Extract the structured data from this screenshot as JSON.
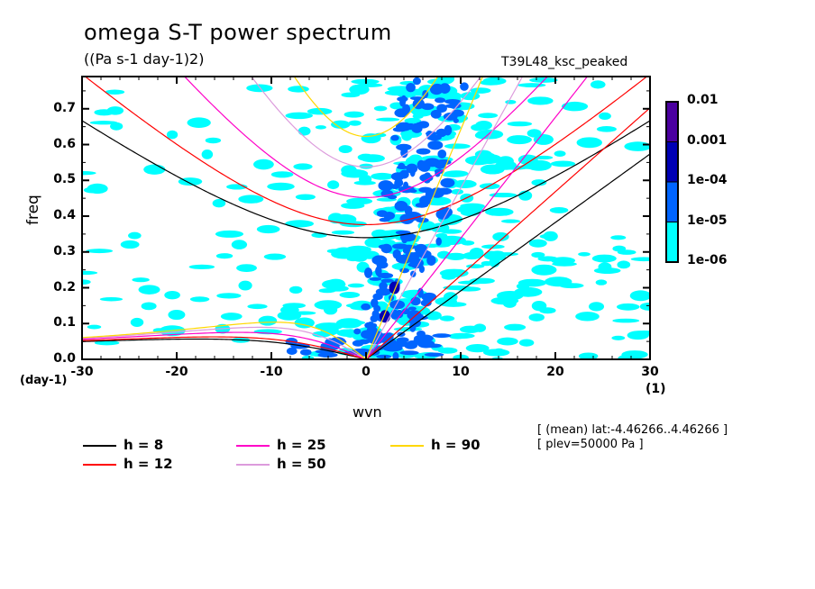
{
  "title": "omega S-T power spectrum",
  "units": "((Pa s-1 day-1)2)",
  "experiment": "T39L48_ksc_peaked",
  "meta_lines": [
    "[ (mean) lat:-4.46266..4.46266 ]",
    "[ plev=50000 Pa ]"
  ],
  "chart_data": {
    "type": "heatmap",
    "title": "omega S-T power spectrum",
    "xlabel": "wvn",
    "ylabel": "freq",
    "x_unit": "(1)",
    "y_unit": "(day-1)",
    "xlim": [
      -30,
      30
    ],
    "ylim": [
      0.0,
      0.79
    ],
    "x_ticks": [
      "-30",
      "-20",
      "-10",
      "0",
      "10",
      "20",
      "30"
    ],
    "y_ticks": [
      "0.0",
      "0.1",
      "0.2",
      "0.3",
      "0.4",
      "0.5",
      "0.6",
      "0.7"
    ],
    "colorbar": {
      "levels": [
        "1e-06",
        "1e-05",
        "1e-04",
        "0.001",
        "0.01"
      ],
      "colors": [
        "#00ffff",
        "#0064ff",
        "#0000b4",
        "#4b00a0"
      ]
    },
    "dispersion_curves": {
      "equivalent_depths_m": [
        8,
        12,
        25,
        50,
        90
      ],
      "colors": [
        "#000000",
        "#ff0000",
        "#ff00c8",
        "#dc9bdc",
        "#ffd700"
      ]
    },
    "spectral_blobs": [
      {
        "wvn": 3,
        "freq": 0.2,
        "level": 3
      },
      {
        "wvn": 2,
        "freq": 0.12,
        "level": 3
      },
      {
        "wvn": 4,
        "freq": 0.28,
        "level": 2
      },
      {
        "wvn": 5,
        "freq": 0.4,
        "level": 2
      },
      {
        "wvn": 2,
        "freq": 0.06,
        "level": 2
      },
      {
        "wvn": 6,
        "freq": 0.05,
        "level": 2
      },
      {
        "wvn": -3,
        "freq": 0.05,
        "level": 2
      },
      {
        "wvn": 7,
        "freq": 0.55,
        "level": 2
      },
      {
        "wvn": 4,
        "freq": 0.65,
        "level": 2
      }
    ]
  },
  "legend": [
    {
      "label": "h =  8",
      "color": "#000000"
    },
    {
      "label": "h = 12",
      "color": "#ff0000"
    },
    {
      "label": "h = 25",
      "color": "#ff00c8"
    },
    {
      "label": "h = 50",
      "color": "#dc9bdc"
    },
    {
      "label": "h = 90",
      "color": "#ffd700"
    }
  ]
}
